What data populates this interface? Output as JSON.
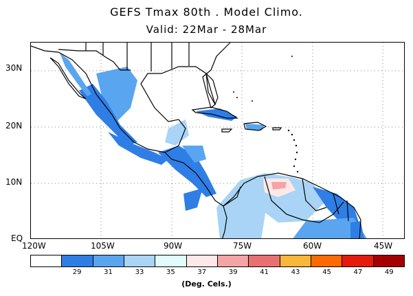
{
  "title": {
    "line1": "GEFS Tmax 80th . Model Climo.",
    "line2": "Valid: 22Mar - 28Mar"
  },
  "map": {
    "extent": {
      "lon_min": -120,
      "lon_max": -40,
      "lat_min": 0,
      "lat_max": 35
    },
    "x_ticks": [
      "120W",
      "105W",
      "90W",
      "75W",
      "60W",
      "45W"
    ],
    "y_ticks": [
      "30N",
      "20N",
      "10N",
      "EQ"
    ],
    "gridlines": true
  },
  "legend": {
    "colors": [
      "#ffffff",
      "#2f7ee6",
      "#5aa5f0",
      "#a9d4f5",
      "#e0fbfb",
      "#ffe8e8",
      "#f4a4a4",
      "#e87070",
      "#fbb63a",
      "#ff6a00",
      "#e61a0a",
      "#a50000"
    ],
    "ticks": [
      "29",
      "31",
      "33",
      "35",
      "37",
      "39",
      "41",
      "43",
      "45",
      "47",
      "49"
    ],
    "units": "(Deg. Cels.)"
  }
}
